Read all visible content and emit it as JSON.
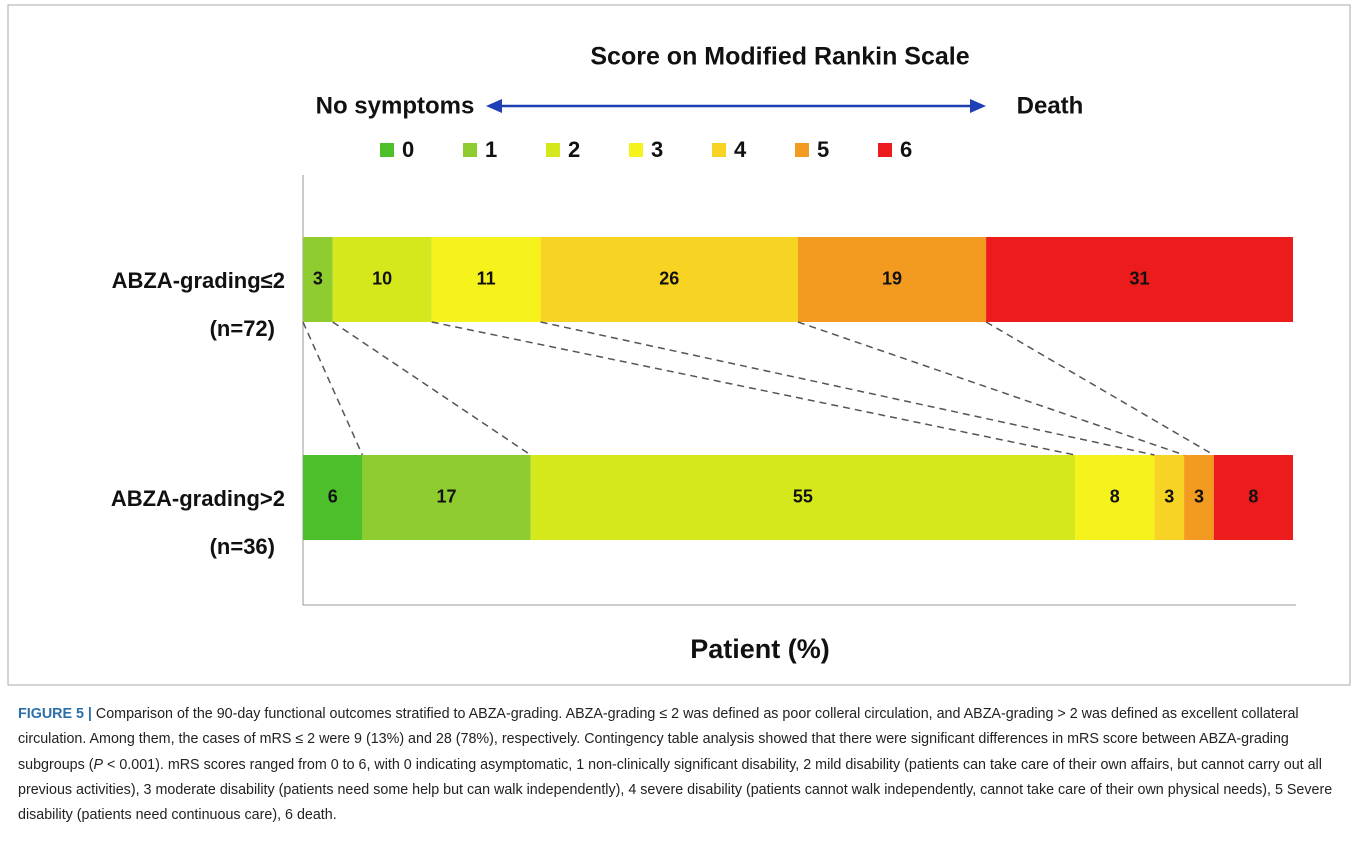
{
  "chart_data": {
    "type": "stacked-bar-horizontal",
    "title": "Score on Modified Rankin Scale",
    "scale_labels": {
      "low": "No symptoms",
      "high": "Death"
    },
    "xlabel": "Patient (%)",
    "categories": [
      "ABZA-grading≤2",
      "ABZA-grading>2"
    ],
    "category_sublabels": [
      "(n=72)",
      "(n=36)"
    ],
    "xlim": [
      0,
      100
    ],
    "series": [
      {
        "name": "0",
        "color": "#4dbf2b",
        "values": [
          0,
          6
        ]
      },
      {
        "name": "1",
        "color": "#8fcc30",
        "values": [
          3,
          17
        ]
      },
      {
        "name": "2",
        "color": "#d5e81c",
        "values": [
          10,
          55
        ]
      },
      {
        "name": "3",
        "color": "#f6f21c",
        "values": [
          11,
          8
        ]
      },
      {
        "name": "4",
        "color": "#f7d424",
        "values": [
          26,
          3
        ]
      },
      {
        "name": "5",
        "color": "#f39a20",
        "values": [
          19,
          3
        ]
      },
      {
        "name": "6",
        "color": "#ec1c1c",
        "values": [
          31,
          8
        ]
      }
    ]
  },
  "caption": {
    "label": "FIGURE 5 |",
    "parts": [
      "Comparison of the 90-day functional outcomes stratified to ABZA-grading. ABZA-grading ≤ 2 was defined as poor colleral circulation, and ABZA-grading > 2 was defined as excellent collateral circulation. Among them, the cases of mRS ≤ 2 were 9 (13%) and 28 (78%), respectively. Contingency table analysis showed that there were significant differences in mRS score between ABZA-grading subgroups (",
      "P",
      " < 0.001). mRS scores ranged from 0 to 6, with 0 indicating asymptomatic, 1 non-clinically significant disability, 2 mild disability (patients can take care of their own affairs, but cannot carry out all previous activities), 3 moderate disability (patients need some help but can walk independently), 4 severe disability (patients cannot walk independently, cannot take care of their own physical needs), 5 Severe disability (patients need continuous care), 6 death."
    ]
  }
}
